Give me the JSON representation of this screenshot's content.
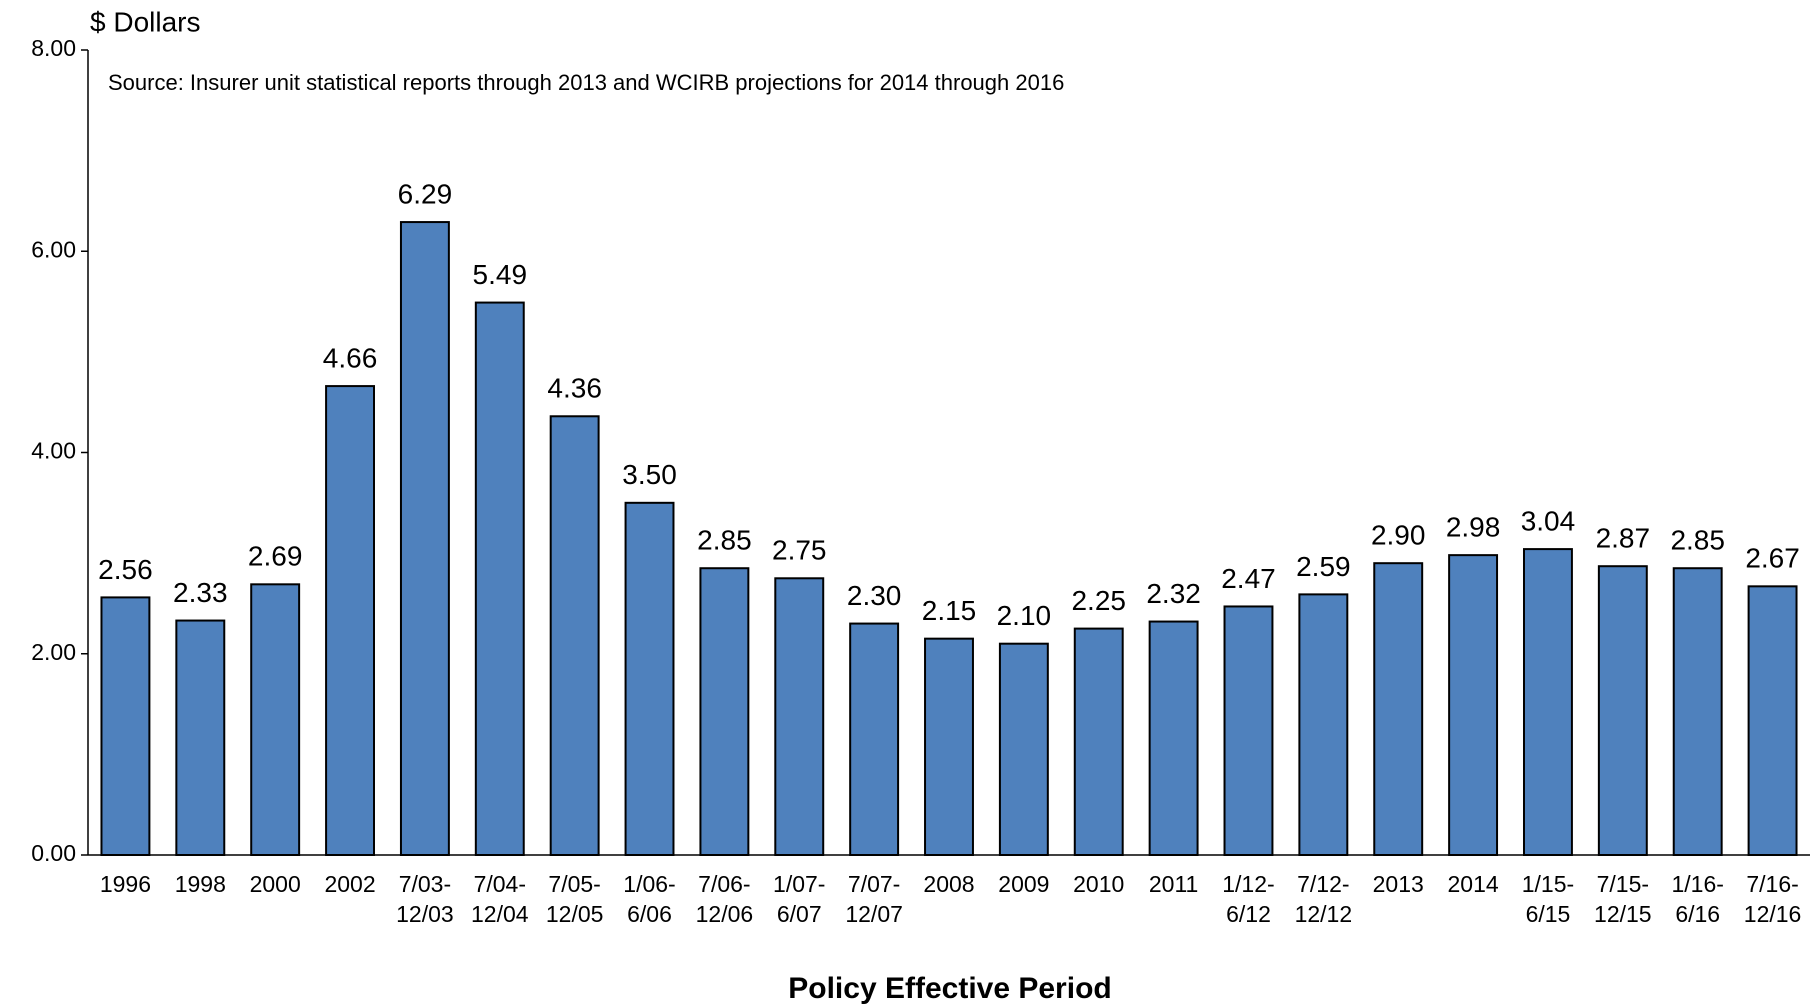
{
  "chart_data": {
    "type": "bar",
    "y_axis_label": "$ Dollars",
    "annotation": "Source: Insurer unit statistical reports through 2013 and WCIRB projections for 2014 through 2016",
    "x_axis_label": "Policy Effective Period",
    "categories": [
      "1996",
      "1998",
      "2000",
      "2002",
      [
        "7/03-",
        "12/03"
      ],
      [
        "7/04-",
        "12/04"
      ],
      [
        "7/05-",
        "12/05"
      ],
      [
        "1/06-",
        "6/06"
      ],
      [
        "7/06-",
        "12/06"
      ],
      [
        "1/07-",
        "6/07"
      ],
      [
        "7/07-",
        "12/07"
      ],
      "2008",
      "2009",
      "2010",
      "2011",
      [
        "1/12-",
        "6/12"
      ],
      [
        "7/12-",
        "12/12"
      ],
      "2013",
      "2014",
      [
        "1/15-",
        "6/15"
      ],
      [
        "7/15-",
        "12/15"
      ],
      [
        "1/16-",
        "6/16"
      ],
      [
        "7/16-",
        "12/16"
      ]
    ],
    "values": [
      2.56,
      2.33,
      2.69,
      4.66,
      6.29,
      5.49,
      4.36,
      3.5,
      2.85,
      2.75,
      2.3,
      2.15,
      2.1,
      2.25,
      2.32,
      2.47,
      2.59,
      2.9,
      2.98,
      3.04,
      2.87,
      2.85,
      2.67
    ],
    "value_labels": [
      "2.56",
      "2.33",
      "2.69",
      "4.66",
      "6.29",
      "5.49",
      "4.36",
      "3.50",
      "2.85",
      "2.75",
      "2.30",
      "2.15",
      "2.10",
      "2.25",
      "2.32",
      "2.47",
      "2.59",
      "2.90",
      "2.98",
      "3.04",
      "2.87",
      "2.85",
      "2.67"
    ],
    "color": "#4f81bd",
    "ylim": [
      0,
      8
    ],
    "yticks": [
      {
        "value": 0,
        "label": "0.00"
      },
      {
        "value": 2,
        "label": "2.00"
      },
      {
        "value": 4,
        "label": "4.00"
      },
      {
        "value": 6,
        "label": "6.00"
      },
      {
        "value": 8,
        "label": "8.00"
      }
    ],
    "grid": false
  }
}
